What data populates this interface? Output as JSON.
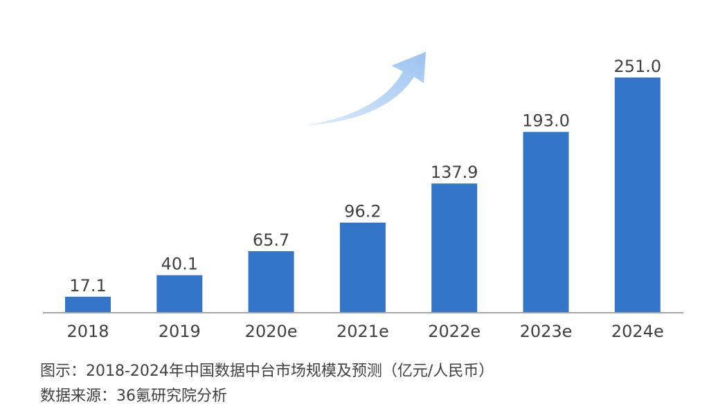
{
  "caption": {
    "title": "图示：2018-2024年中国数据中台市场规模及预测（亿元/人民币）",
    "source": "数据来源：36氪研究院分析"
  },
  "colors": {
    "bar": "#3375C9",
    "axis": "#A6A6A6",
    "label": "#404040",
    "arrow_start": "#DCEBFB",
    "arrow_end": "#9CC3F0"
  },
  "chart_data": {
    "type": "bar",
    "title": "",
    "xlabel": "",
    "ylabel": "",
    "categories": [
      "2018",
      "2019",
      "2020e",
      "2021e",
      "2022e",
      "2023e",
      "2024e"
    ],
    "values": [
      17.1,
      40.1,
      65.7,
      96.2,
      137.9,
      193.0,
      251.0
    ],
    "value_labels": [
      "17.1",
      "40.1",
      "65.7",
      "96.2",
      "137.9",
      "193.0",
      "251.0"
    ],
    "ylim": [
      0,
      251
    ],
    "grid": false,
    "legend": "none",
    "decoration": "upward-growth-arrow-icon"
  }
}
